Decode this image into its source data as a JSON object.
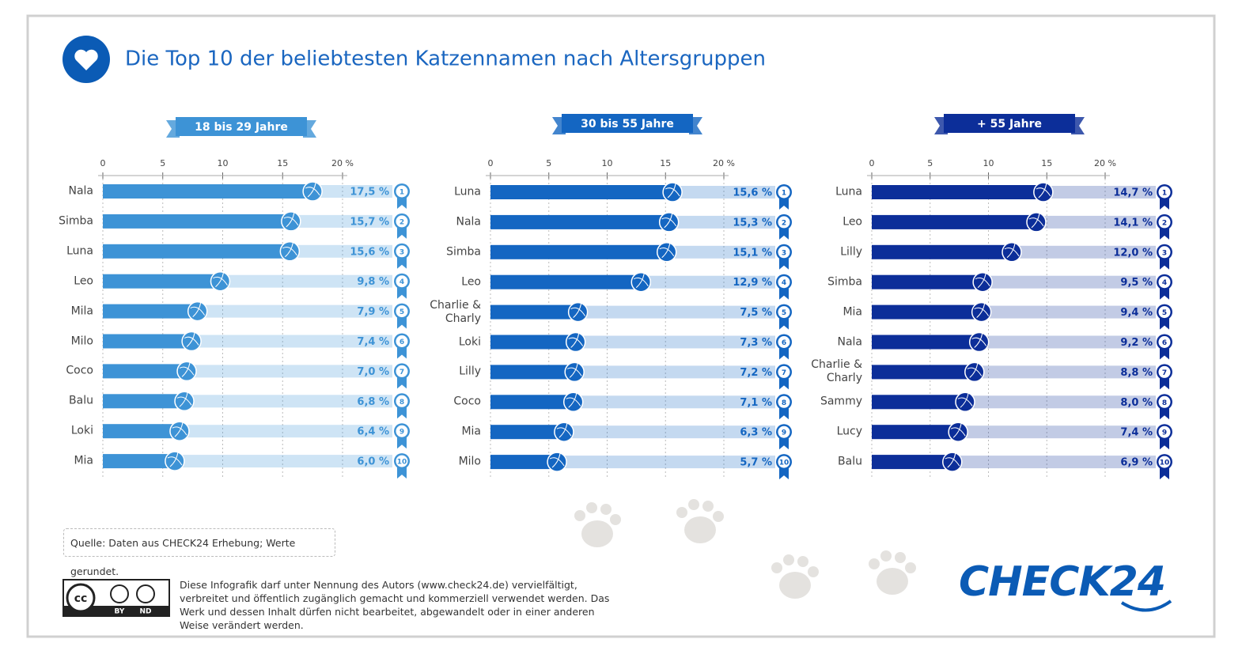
{
  "title": "Die Top 10 der beliebtesten Katzennamen nach Altersgruppen",
  "chart_data": [
    {
      "type": "bar",
      "orientation": "horizontal",
      "title": "18 bis 29 Jahre",
      "color": "#3d93d6",
      "grid": true,
      "categories": [
        "Nala",
        "Simba",
        "Luna",
        "Leo",
        "Mila",
        "Milo",
        "Coco",
        "Balu",
        "Loki",
        "Mia"
      ],
      "values": [
        17.5,
        15.7,
        15.6,
        9.8,
        7.9,
        7.4,
        7.0,
        6.8,
        6.4,
        6.0
      ],
      "value_labels": [
        "17,5 %",
        "15,7 %",
        "15,6 %",
        "9,8 %",
        "7,9 %",
        "7,4 %",
        "7,0 %",
        "6,8 %",
        "6,4 %",
        "6,0 %"
      ],
      "ranks": [
        1,
        2,
        3,
        4,
        5,
        6,
        7,
        8,
        9,
        10
      ],
      "xlim": [
        0,
        20
      ],
      "xticks": [
        0,
        5,
        10,
        15,
        {
          "value": 20,
          "label": "20 %"
        }
      ]
    },
    {
      "type": "bar",
      "orientation": "horizontal",
      "title": "30 bis 55 Jahre",
      "color": "#1466c2",
      "grid": true,
      "categories": [
        "Luna",
        "Nala",
        "Simba",
        "Leo",
        "Charlie & Charly",
        "Loki",
        "Lilly",
        "Coco",
        "Mia",
        "Milo"
      ],
      "values": [
        15.6,
        15.3,
        15.1,
        12.9,
        7.5,
        7.3,
        7.2,
        7.1,
        6.3,
        5.7
      ],
      "value_labels": [
        "15,6 %",
        "15,3 %",
        "15,1 %",
        "12,9 %",
        "7,5 %",
        "7,3 %",
        "7,2 %",
        "7,1 %",
        "6,3 %",
        "5,7 %"
      ],
      "ranks": [
        1,
        2,
        3,
        4,
        5,
        6,
        7,
        8,
        9,
        10
      ],
      "xlim": [
        0,
        20
      ],
      "xticks": [
        0,
        5,
        10,
        15,
        {
          "value": 20,
          "label": "20 %"
        }
      ]
    },
    {
      "type": "bar",
      "orientation": "horizontal",
      "title": "+ 55 Jahre",
      "color": "#0c2e99",
      "grid": true,
      "categories": [
        "Luna",
        "Leo",
        "Lilly",
        "Simba",
        "Mia",
        "Nala",
        "Charlie & Charly",
        "Sammy",
        "Lucy",
        "Balu"
      ],
      "values": [
        14.7,
        14.1,
        12.0,
        9.5,
        9.4,
        9.2,
        8.8,
        8.0,
        7.4,
        6.9
      ],
      "value_labels": [
        "14,7 %",
        "14,1 %",
        "12,0 %",
        "9,5 %",
        "9,4 %",
        "9,2 %",
        "8,8 %",
        "8,0 %",
        "7,4 %",
        "6,9 %"
      ],
      "ranks": [
        1,
        2,
        3,
        4,
        5,
        6,
        7,
        8,
        9,
        10
      ],
      "xlim": [
        0,
        20
      ],
      "xticks": [
        0,
        5,
        10,
        15,
        {
          "value": 20,
          "label": "20 %"
        }
      ]
    }
  ],
  "source": "Quelle: Daten aus CHECK24 Erhebung; Werte gerundet.",
  "license": "Diese Infografik darf unter Nennung des Autors (www.check24.de) vervielfältigt, verbreitet und öffentlich zugänglich gemacht und kommerziell verwendet werden. Das Werk und dessen Inhalt dürfen nicht bearbeitet, abgewandelt oder in einer anderen Weise verändert werden.",
  "cc_badge": {
    "logo": "cc",
    "terms": [
      "BY",
      "ND"
    ]
  },
  "logo": "CHECK24"
}
